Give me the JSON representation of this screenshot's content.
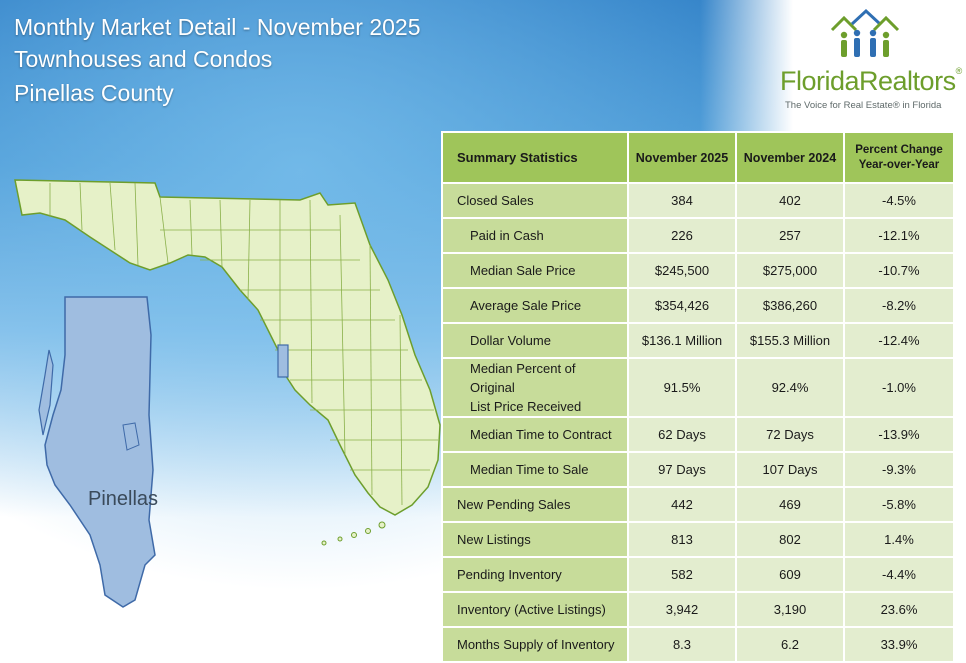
{
  "header": {
    "line1": "Monthly Market Detail - November 2025",
    "line2": "Townhouses and Condos",
    "line3": "Pinellas County"
  },
  "logo": {
    "name": "FloridaRealtors",
    "registered": "®",
    "tagline": "The Voice for Real Estate® in Florida",
    "icon": "people-houses-icon",
    "colors": {
      "green": "#6d9e2c",
      "blue": "#2f6fb3"
    }
  },
  "map": {
    "county_label": "Pinellas",
    "colors": {
      "state_fill": "#e6f1c8",
      "state_stroke": "#6d9e2c",
      "county_fill": "#9fbde0",
      "county_stroke": "#3f6aa8"
    }
  },
  "table": {
    "headers": {
      "label": "Summary Statistics",
      "current": "November 2025",
      "previous": "November 2024",
      "change_line1": "Percent Change",
      "change_line2": "Year-over-Year"
    },
    "rows": [
      {
        "label": "Closed Sales",
        "current": "384",
        "previous": "402",
        "change": "-4.5%"
      },
      {
        "label": "Paid in Cash",
        "current": "226",
        "previous": "257",
        "change": "-12.1%"
      },
      {
        "label": "Median Sale Price",
        "current": "$245,500",
        "previous": "$275,000",
        "change": "-10.7%"
      },
      {
        "label": "Average Sale Price",
        "current": "$354,426",
        "previous": "$386,260",
        "change": "-8.2%"
      },
      {
        "label": "Dollar Volume",
        "current": "$136.1 Million",
        "previous": "$155.3 Million",
        "change": "-12.4%"
      },
      {
        "label": "Median Percent of Original",
        "label2": "List Price Received",
        "current": "91.5%",
        "previous": "92.4%",
        "change": "-1.0%"
      },
      {
        "label": "Median Time to Contract",
        "current": "62 Days",
        "previous": "72 Days",
        "change": "-13.9%"
      },
      {
        "label": "Median Time to Sale",
        "current": "97 Days",
        "previous": "107 Days",
        "change": "-9.3%"
      },
      {
        "label": "New Pending Sales",
        "current": "442",
        "previous": "469",
        "change": "-5.8%"
      },
      {
        "label": "New Listings",
        "current": "813",
        "previous": "802",
        "change": "1.4%"
      },
      {
        "label": "Pending Inventory",
        "current": "582",
        "previous": "609",
        "change": "-4.4%"
      },
      {
        "label": "Inventory (Active Listings)",
        "current": "3,942",
        "previous": "3,190",
        "change": "23.6%"
      },
      {
        "label": "Months Supply of Inventory",
        "current": "8.3",
        "previous": "6.2",
        "change": "33.9%"
      }
    ],
    "colors": {
      "header": "#9fc55a",
      "label_cell": "#c7dc9a",
      "value_cell": "#e3edcf"
    }
  }
}
